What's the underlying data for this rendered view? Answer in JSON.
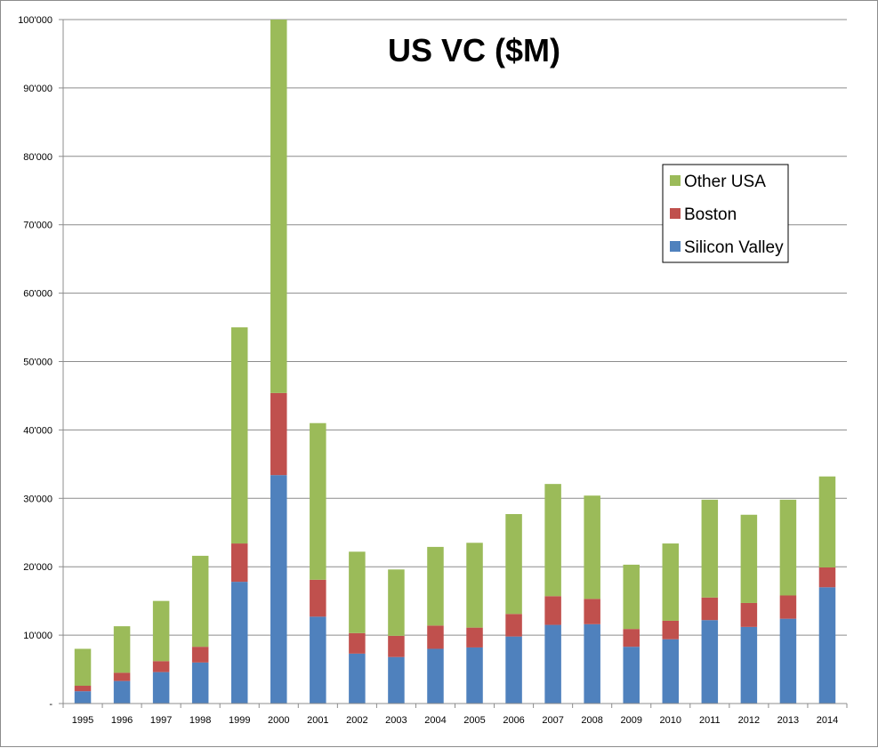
{
  "chart_data": {
    "type": "bar",
    "stacked": true,
    "title": "US VC ($M)",
    "xlabel": "",
    "ylabel": "",
    "categories": [
      "1995",
      "1996",
      "1997",
      "1998",
      "1999",
      "2000",
      "2001",
      "2002",
      "2003",
      "2004",
      "2005",
      "2006",
      "2007",
      "2008",
      "2009",
      "2010",
      "2011",
      "2012",
      "2013",
      "2014"
    ],
    "series": [
      {
        "name": "Silicon Valley",
        "color": "#4f81bd",
        "values": [
          1800,
          3300,
          4600,
          6000,
          17800,
          33400,
          12700,
          7300,
          6800,
          8000,
          8200,
          9800,
          11500,
          11600,
          8300,
          9400,
          12200,
          11200,
          12400,
          17000
        ]
      },
      {
        "name": "Boston",
        "color": "#c0504d",
        "values": [
          800,
          1200,
          1600,
          2300,
          5600,
          12000,
          5400,
          3000,
          3100,
          3400,
          2900,
          3300,
          4200,
          3700,
          2600,
          2700,
          3300,
          3500,
          3400,
          2900
        ]
      },
      {
        "name": "Other USA",
        "color": "#9bbb59",
        "values": [
          5400,
          6800,
          8800,
          13300,
          31600,
          54600,
          22900,
          11900,
          9700,
          11500,
          12400,
          14600,
          16400,
          15100,
          9400,
          11300,
          14300,
          12900,
          14000,
          13300
        ]
      }
    ],
    "legend_order": [
      "Other USA",
      "Boston",
      "Silicon Valley"
    ],
    "legend_position": "right",
    "ylim": [
      0,
      100000
    ],
    "yticks": [
      0,
      10000,
      20000,
      30000,
      40000,
      50000,
      60000,
      70000,
      80000,
      90000,
      100000
    ],
    "ytick_labels": [
      "-",
      "10'000",
      "20'000",
      "30'000",
      "40'000",
      "50'000",
      "60'000",
      "70'000",
      "80'000",
      "90'000",
      "100'000"
    ],
    "grid": true
  }
}
